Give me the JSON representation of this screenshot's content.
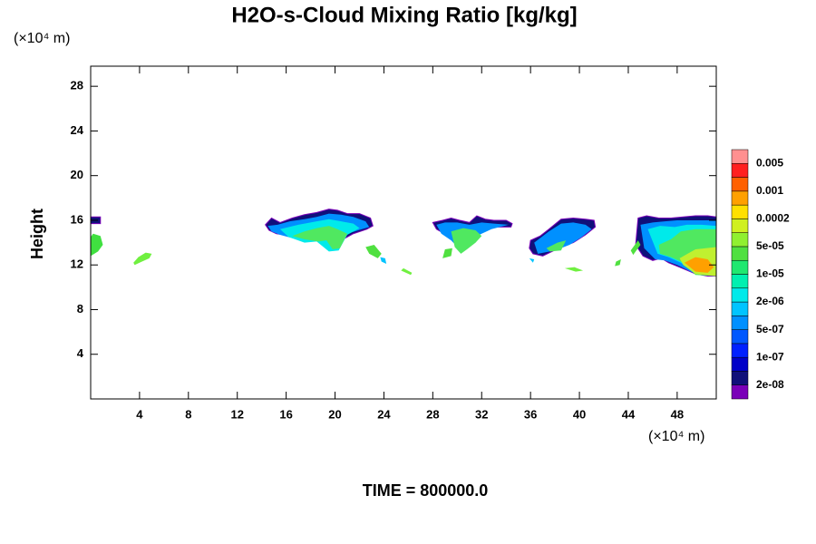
{
  "chart_data": {
    "type": "contour",
    "title": "H2O-s-Cloud Mixing Ratio [kg/kg]",
    "y_label": "Height",
    "y_unit": "(×10⁴ m)",
    "x_unit": "(×10⁴ m)",
    "annotation": "TIME = 800000.0",
    "xlim": [
      0,
      51.2
    ],
    "ylim": [
      0,
      29.8
    ],
    "xticks": [
      4,
      8,
      12,
      16,
      20,
      24,
      28,
      32,
      36,
      40,
      44,
      48
    ],
    "yticks": [
      4,
      8,
      12,
      16,
      20,
      24,
      28
    ],
    "colorbar": {
      "colors": [
        "#7a00b8",
        "#10107a",
        "#0000c8",
        "#0020ff",
        "#0058ff",
        "#0090ff",
        "#00c4ff",
        "#00eaea",
        "#00f0b0",
        "#20e870",
        "#50e040",
        "#90f030",
        "#d0f020",
        "#ffe000",
        "#ffa000",
        "#ff6000",
        "#ff2020",
        "#ff9090"
      ],
      "levels": [
        {
          "value": 2e-08,
          "label": "2e-08"
        },
        {
          "value": 1e-07,
          "label": "1e-07"
        },
        {
          "value": 5e-07,
          "label": "5e-07"
        },
        {
          "value": 2e-06,
          "label": "2e-06"
        },
        {
          "value": 1e-05,
          "label": "1e-05"
        },
        {
          "value": 5e-05,
          "label": "5e-05"
        },
        0.0002,
        0.001,
        0.005
      ]
    },
    "contours": [
      {
        "color": "#10107a",
        "x": [
          0,
          0.8,
          0.8,
          0
        ],
        "y": [
          15.7,
          15.7,
          16.3,
          16.3
        ]
      },
      {
        "color": "#40e040",
        "x": [
          0,
          0.6,
          1,
          0.8,
          0.2,
          0
        ],
        "y": [
          12.8,
          13.2,
          13.8,
          14.6,
          14.8,
          14.5
        ]
      },
      {
        "color": "#70f040",
        "x": [
          3.6,
          4.2,
          4.8,
          5,
          4.5,
          3.9,
          3.5
        ],
        "y": [
          12,
          12.3,
          12.6,
          13,
          13.1,
          12.7,
          12.2
        ]
      },
      {
        "color": "#10107a",
        "x": [
          14.3,
          14.8,
          15.5,
          16.5,
          17.5,
          18.5,
          19.5,
          20.2,
          21,
          22,
          22.9,
          23.1,
          22.6,
          21.5,
          20.5,
          19.5,
          18,
          16.5,
          15.2,
          14.6
        ],
        "y": [
          15.6,
          16.2,
          15.8,
          16.2,
          16.5,
          16.7,
          17,
          16.9,
          16.6,
          16.6,
          16.2,
          15.5,
          15.2,
          14.8,
          14.2,
          14.3,
          14.6,
          14.6,
          14.8,
          15.1
        ]
      },
      {
        "color": "#0090ff",
        "x": [
          14.5,
          15.3,
          16.3,
          17.5,
          18.5,
          19.5,
          20.5,
          21.5,
          22.5,
          22.8,
          22.2,
          21,
          20.3,
          19.5,
          18.5,
          17.5,
          16.5,
          15.5,
          14.8
        ],
        "y": [
          15.5,
          15.6,
          15.9,
          16.1,
          16.3,
          16.6,
          16.5,
          16.3,
          15.9,
          15.4,
          15.2,
          14.8,
          13.6,
          13.4,
          14.4,
          14.2,
          14.4,
          14.7,
          15
        ]
      },
      {
        "color": "#00eaea",
        "x": [
          15.5,
          17,
          18.5,
          19.5,
          20.5,
          21.5,
          22,
          21,
          20.3,
          19.5,
          18.5,
          17.5,
          16.2
        ],
        "y": [
          15.2,
          15.6,
          15.9,
          16.1,
          15.9,
          15.7,
          15.3,
          14.7,
          13.3,
          13.2,
          14.1,
          14,
          14.5
        ]
      },
      {
        "color": "#50e860",
        "x": [
          16.5,
          17.5,
          18.5,
          19.5,
          20.2,
          21,
          20.4,
          19.8,
          19.3,
          18.6,
          17.5
        ],
        "y": [
          14.6,
          15,
          15.3,
          15.5,
          15.2,
          14.8,
          13.5,
          13.4,
          14.2,
          14.1,
          14.3
        ]
      },
      {
        "color": "#50e040",
        "x": [
          22.5,
          23.2,
          23.8,
          23.5,
          22.8
        ],
        "y": [
          13.6,
          13.8,
          13,
          12.6,
          13
        ]
      },
      {
        "color": "#00c4ff",
        "x": [
          23.8,
          24.2,
          24.1,
          23.7
        ],
        "y": [
          12.3,
          12.1,
          12.6,
          12.7
        ]
      },
      {
        "color": "#70f040",
        "x": [
          25.4,
          26.2,
          26.3,
          25.6
        ],
        "y": [
          11.5,
          11.1,
          11.3,
          11.7
        ]
      },
      {
        "color": "#10107a",
        "x": [
          28,
          28.8,
          29.5,
          30.2,
          31,
          31.6,
          32.3,
          33,
          34,
          34.5,
          34.4,
          33,
          32,
          31.3,
          30.5,
          29.8,
          29.3,
          28.8,
          28.3
        ],
        "y": [
          15.8,
          16,
          16.2,
          16,
          15.8,
          16.4,
          16.1,
          16,
          16,
          15.7,
          15.4,
          15.4,
          15,
          14.5,
          13.6,
          14.1,
          14.5,
          14.9,
          15.2
        ]
      },
      {
        "color": "#0090ff",
        "x": [
          28.3,
          29,
          30,
          31,
          32,
          33,
          34.2,
          32.8,
          31.8,
          31,
          30.3,
          29.5,
          28.7
        ],
        "y": [
          15.6,
          15.8,
          15.8,
          15.6,
          15.8,
          15.7,
          15.6,
          15.2,
          14.7,
          14,
          13.3,
          14.2,
          14.8
        ]
      },
      {
        "color": "#50e860",
        "x": [
          29.5,
          30.5,
          31.5,
          32,
          31.5,
          30.8,
          30.3,
          29.8
        ],
        "y": [
          15,
          15.3,
          15.1,
          14.6,
          14,
          13.4,
          13,
          13.6
        ]
      },
      {
        "color": "#50e040",
        "x": [
          28.8,
          29.5,
          29.6,
          29
        ],
        "y": [
          12.6,
          12.8,
          13.5,
          13.4
        ]
      },
      {
        "color": "#10107a",
        "x": [
          36,
          36.8,
          37.5,
          38.5,
          39.5,
          40.5,
          41.2,
          41.3,
          40.5,
          39.5,
          38.5,
          37,
          36.2,
          35.9
        ],
        "y": [
          14.2,
          14.6,
          15.2,
          16.1,
          16.2,
          16.1,
          16,
          15.4,
          14.7,
          14,
          13.6,
          12.8,
          13,
          13.5
        ]
      },
      {
        "color": "#0090ff",
        "x": [
          36.3,
          37.5,
          38.5,
          39.5,
          40.5,
          41,
          40.2,
          39.2,
          38,
          36.6
        ],
        "y": [
          14,
          15,
          15.7,
          15.8,
          15.6,
          15.2,
          14.5,
          13.8,
          13.3,
          13
        ]
      },
      {
        "color": "#50e860",
        "x": [
          37.3,
          38.2,
          38.9,
          38.5,
          37.6
        ],
        "y": [
          13.5,
          14,
          14.2,
          13.3,
          13.2
        ]
      },
      {
        "color": "#70f040",
        "x": [
          38.8,
          39.6,
          40.3,
          39.7
        ],
        "y": [
          11.7,
          11.8,
          11.5,
          11.4
        ]
      },
      {
        "color": "#00c4ff",
        "x": [
          35.9,
          36.3,
          36.2
        ],
        "y": [
          12.6,
          12.5,
          12.2
        ]
      },
      {
        "color": "#10107a",
        "x": [
          44.8,
          45.5,
          46.5,
          47.5,
          48.5,
          49.5,
          50.5,
          51.2,
          51.2,
          50.5,
          49.5,
          48.2,
          47.3,
          46.7,
          46,
          45.2,
          44.6
        ],
        "y": [
          16.2,
          16.4,
          16.2,
          16.2,
          16.3,
          16.4,
          16.4,
          16.3,
          11,
          11,
          11.2,
          11.8,
          12.2,
          12.6,
          12.4,
          12.8,
          13.8
        ]
      },
      {
        "color": "#0090ff",
        "x": [
          45,
          46,
          47,
          48,
          49,
          50.5,
          51.2,
          51.2,
          49.5,
          48,
          47,
          46.2,
          45.3
        ],
        "y": [
          15.6,
          15.8,
          15.9,
          16,
          16,
          16,
          16,
          11,
          11.2,
          12,
          12.4,
          12.5,
          13.5
        ]
      },
      {
        "color": "#00eaea",
        "x": [
          45.6,
          46.6,
          47.8,
          48.8,
          50,
          51.2,
          51.2,
          49.5,
          48.3,
          47.3,
          46.4
        ],
        "y": [
          15.2,
          15.5,
          15.4,
          15.6,
          15.6,
          15.5,
          11,
          11.2,
          12.2,
          12.7,
          13
        ]
      },
      {
        "color": "#50e860",
        "x": [
          46.5,
          47.5,
          48.3,
          49.5,
          51.2,
          51.2,
          49.5,
          48.5,
          47.5,
          46.6
        ],
        "y": [
          13.8,
          14.3,
          15,
          15.2,
          15.2,
          11,
          11.1,
          12.2,
          12.7,
          13
        ]
      },
      {
        "color": "#c0f030",
        "x": [
          48.2,
          49.5,
          51.2,
          51.2,
          49.5,
          48.5
        ],
        "y": [
          12.6,
          13.4,
          13.6,
          11,
          11.2,
          12
        ]
      },
      {
        "color": "#ffa000",
        "x": [
          48.6,
          49.5,
          50.5,
          51,
          50.5,
          49.5
        ],
        "y": [
          12.2,
          12.7,
          12.5,
          11.8,
          11.3,
          11.4
        ]
      },
      {
        "color": "#50e040",
        "x": [
          44.2,
          44.8,
          45,
          44.4
        ],
        "y": [
          13.3,
          14.2,
          13.8,
          12.9
        ]
      },
      {
        "color": "#50e040",
        "x": [
          43,
          43.4,
          43.3,
          42.9
        ],
        "y": [
          12.3,
          12.5,
          12,
          11.9
        ]
      }
    ]
  }
}
